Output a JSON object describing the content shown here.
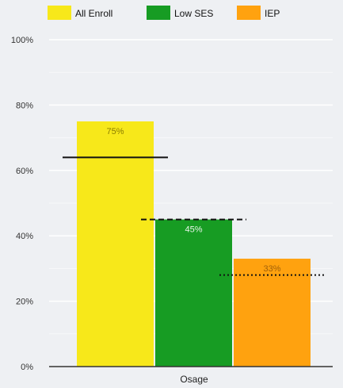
{
  "chart_data": {
    "type": "bar",
    "categories": [
      "Osage"
    ],
    "series": [
      {
        "name": "All Enroll",
        "values": [
          75
        ],
        "value_labels": [
          "75%"
        ],
        "color": "#f7e81a",
        "label_color": "#8a7d00"
      },
      {
        "name": "Low SES",
        "values": [
          45
        ],
        "value_labels": [
          "45%"
        ],
        "color": "#179c23",
        "label_color": "#e8f5e9"
      },
      {
        "name": "IEP",
        "values": [
          33
        ],
        "value_labels": [
          "33%"
        ],
        "color": "#ffa20f",
        "label_color": "#a0600a"
      }
    ],
    "reference_lines": [
      {
        "series": "All Enroll",
        "value": 64,
        "style": "solid"
      },
      {
        "series": "Low SES",
        "value": 45,
        "style": "dashed"
      },
      {
        "series": "IEP",
        "value": 28,
        "style": "dotted"
      }
    ],
    "yticks": [
      "0%",
      "20%",
      "40%",
      "60%",
      "80%",
      "100%"
    ],
    "ytick_values": [
      0,
      20,
      40,
      60,
      80,
      100
    ],
    "ylim": [
      0,
      100
    ],
    "grid": true,
    "legend_position": "top-left",
    "title": "",
    "xlabel": "",
    "ylabel": ""
  }
}
